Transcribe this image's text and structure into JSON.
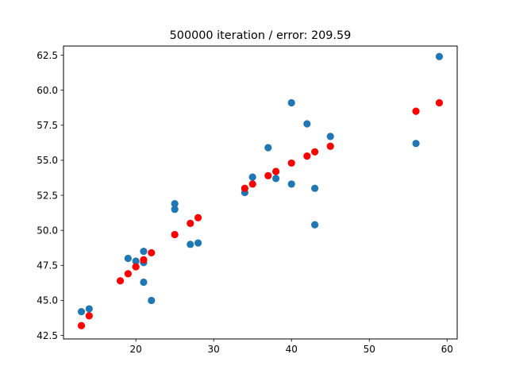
{
  "chart_data": {
    "type": "scatter",
    "title": "500000 iteration / error: 209.59",
    "xlabel": "",
    "ylabel": "",
    "xlim": [
      10.7,
      61.3
    ],
    "ylim": [
      42.25,
      63.15
    ],
    "xticks": [
      20,
      30,
      40,
      50,
      60
    ],
    "yticks": [
      42.5,
      45.0,
      47.5,
      50.0,
      52.5,
      55.0,
      57.5,
      60.0,
      62.5
    ],
    "xtick_labels": [
      "20",
      "30",
      "40",
      "50",
      "60"
    ],
    "ytick_labels": [
      "42.5",
      "45.0",
      "47.5",
      "50.0",
      "52.5",
      "55.0",
      "57.5",
      "60.0",
      "62.5"
    ],
    "grid": false,
    "series": [
      {
        "color": "#1f77b4",
        "x": [
          13,
          14,
          19,
          20,
          21,
          21,
          21,
          22,
          25,
          25,
          27,
          28,
          34,
          35,
          37,
          38,
          40,
          40,
          42,
          43,
          43,
          45,
          56,
          59
        ],
        "y": [
          44.2,
          44.4,
          48.0,
          47.8,
          48.5,
          47.7,
          46.3,
          45.0,
          51.9,
          51.5,
          49.0,
          49.1,
          52.7,
          53.8,
          55.9,
          53.7,
          59.1,
          53.3,
          57.6,
          53.0,
          50.4,
          56.7,
          56.2,
          62.4
        ]
      },
      {
        "color": "#ff0000",
        "x": [
          13,
          14,
          18,
          19,
          20,
          21,
          22,
          25,
          27,
          28,
          34,
          35,
          37,
          38,
          40,
          42,
          43,
          45,
          56,
          59
        ],
        "y": [
          43.2,
          43.9,
          46.4,
          46.9,
          47.4,
          47.9,
          48.4,
          49.7,
          50.5,
          50.9,
          53.0,
          53.3,
          53.9,
          54.2,
          54.8,
          55.3,
          55.6,
          56.0,
          58.5,
          59.1
        ]
      }
    ]
  }
}
